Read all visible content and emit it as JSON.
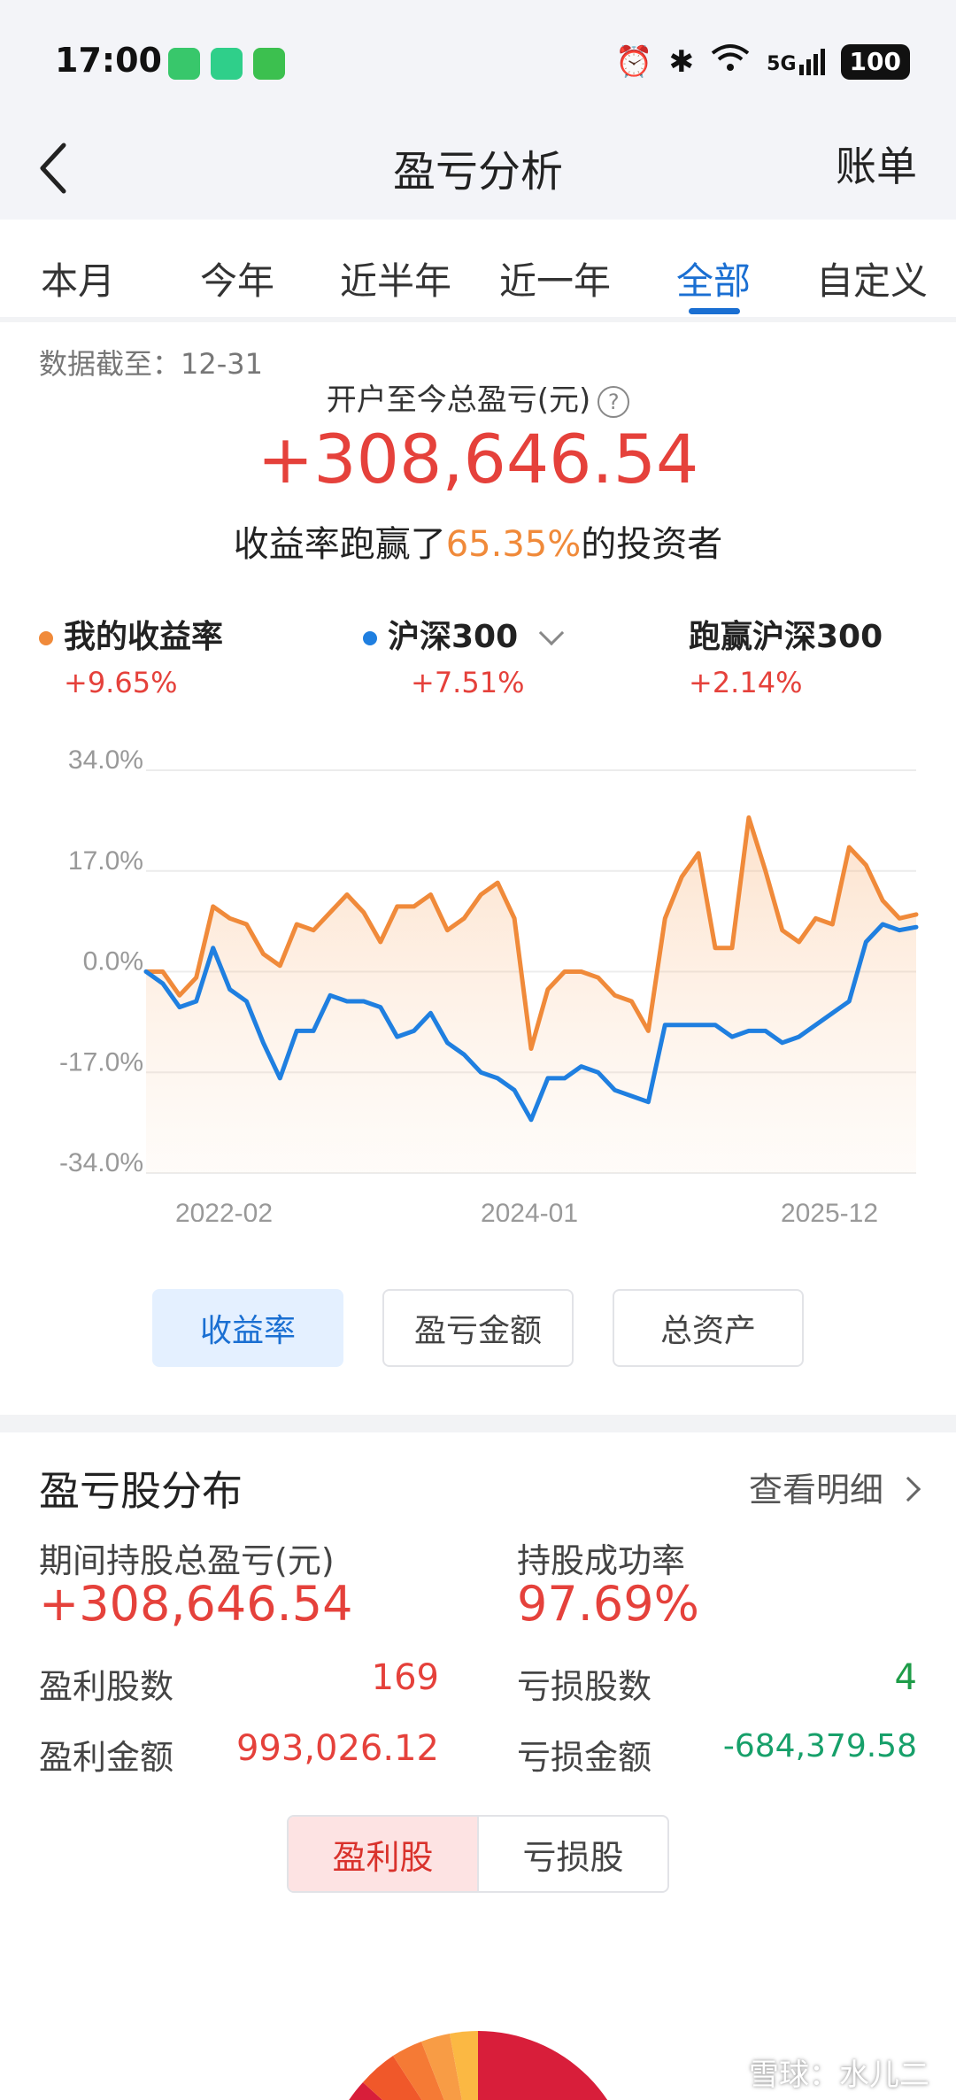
{
  "status_bar": {
    "time": "17:00",
    "signal_label": "5G",
    "battery": "100"
  },
  "nav": {
    "title": "盈亏分析",
    "right_label": "账单"
  },
  "tabs": [
    {
      "label": "本月",
      "active": false
    },
    {
      "label": "今年",
      "active": false
    },
    {
      "label": "近半年",
      "active": false
    },
    {
      "label": "近一年",
      "active": false
    },
    {
      "label": "全部",
      "active": true
    },
    {
      "label": "自定义",
      "active": false
    }
  ],
  "summary": {
    "as_of": "数据截至：12-31",
    "total_label": "开户至今总盈亏(元)",
    "total_value": "+308,646.54",
    "beat_prefix": "收益率跑赢了",
    "beat_pct": "65.35%",
    "beat_suffix": "的投资者"
  },
  "legend": {
    "mine": {
      "label": "我的收益率",
      "value": "+9.65%"
    },
    "index": {
      "label": "沪深300",
      "value": "+7.51%"
    },
    "excess": {
      "label": "跑赢沪深300",
      "value": "+2.14%"
    }
  },
  "colors": {
    "mine": "#f08a3a",
    "index": "#1f7fe0",
    "red": "#e5413b",
    "accent_blue": "#1a6fd2"
  },
  "chart_data": {
    "type": "line",
    "y_ticks": [
      "34.0%",
      "17.0%",
      "0.0%",
      "-17.0%",
      "-34.0%"
    ],
    "x_ticks": [
      "2022-02",
      "2024-01",
      "2025-12"
    ],
    "ylim": [
      -34,
      34
    ],
    "grid": true,
    "area_fill_series": "我的收益率",
    "series": [
      {
        "name": "我的收益率",
        "values": [
          0,
          0,
          -4,
          -1,
          11,
          9,
          8,
          3,
          1,
          8,
          7,
          10,
          13,
          10,
          5,
          11,
          11,
          13,
          7,
          9,
          13,
          15,
          9,
          -13,
          -3,
          0,
          0,
          -1,
          -4,
          -5,
          -10,
          9,
          16,
          20,
          4,
          4,
          26,
          17,
          7,
          5,
          9,
          8,
          21,
          18,
          12,
          9,
          9.65
        ]
      },
      {
        "name": "沪深300",
        "values": [
          0,
          -2,
          -6,
          -5,
          4,
          -3,
          -5,
          -12,
          -18,
          -10,
          -10,
          -4,
          -5,
          -5,
          -6,
          -11,
          -10,
          -7,
          -12,
          -14,
          -17,
          -18,
          -20,
          -25,
          -18,
          -18,
          -16,
          -17,
          -20,
          -21,
          -22,
          -9,
          -9,
          -9,
          -9,
          -11,
          -10,
          -10,
          -12,
          -11,
          -9,
          -7,
          -5,
          5,
          8,
          7,
          7.51
        ]
      }
    ]
  },
  "chart_buttons": [
    {
      "label": "收益率",
      "active": true
    },
    {
      "label": "盈亏金额",
      "active": false
    },
    {
      "label": "总资产",
      "active": false
    }
  ],
  "distribution": {
    "title": "盈亏股分布",
    "more_label": "查看明细",
    "period_label": "期间持股总盈亏(元)",
    "period_value": "+308,646.54",
    "success_label": "持股成功率",
    "success_value": "97.69%",
    "profit_count_label": "盈利股数",
    "profit_count": "169",
    "loss_count_label": "亏损股数",
    "loss_count": "4",
    "profit_amount_label": "盈利金额",
    "profit_amount": "993,026.12",
    "loss_amount_label": "亏损金额",
    "loss_amount": "-684,379.58",
    "toggle": [
      {
        "label": "盈利股",
        "active": true
      },
      {
        "label": "亏损股",
        "active": false
      }
    ]
  },
  "watermark": "雪球：水儿二"
}
